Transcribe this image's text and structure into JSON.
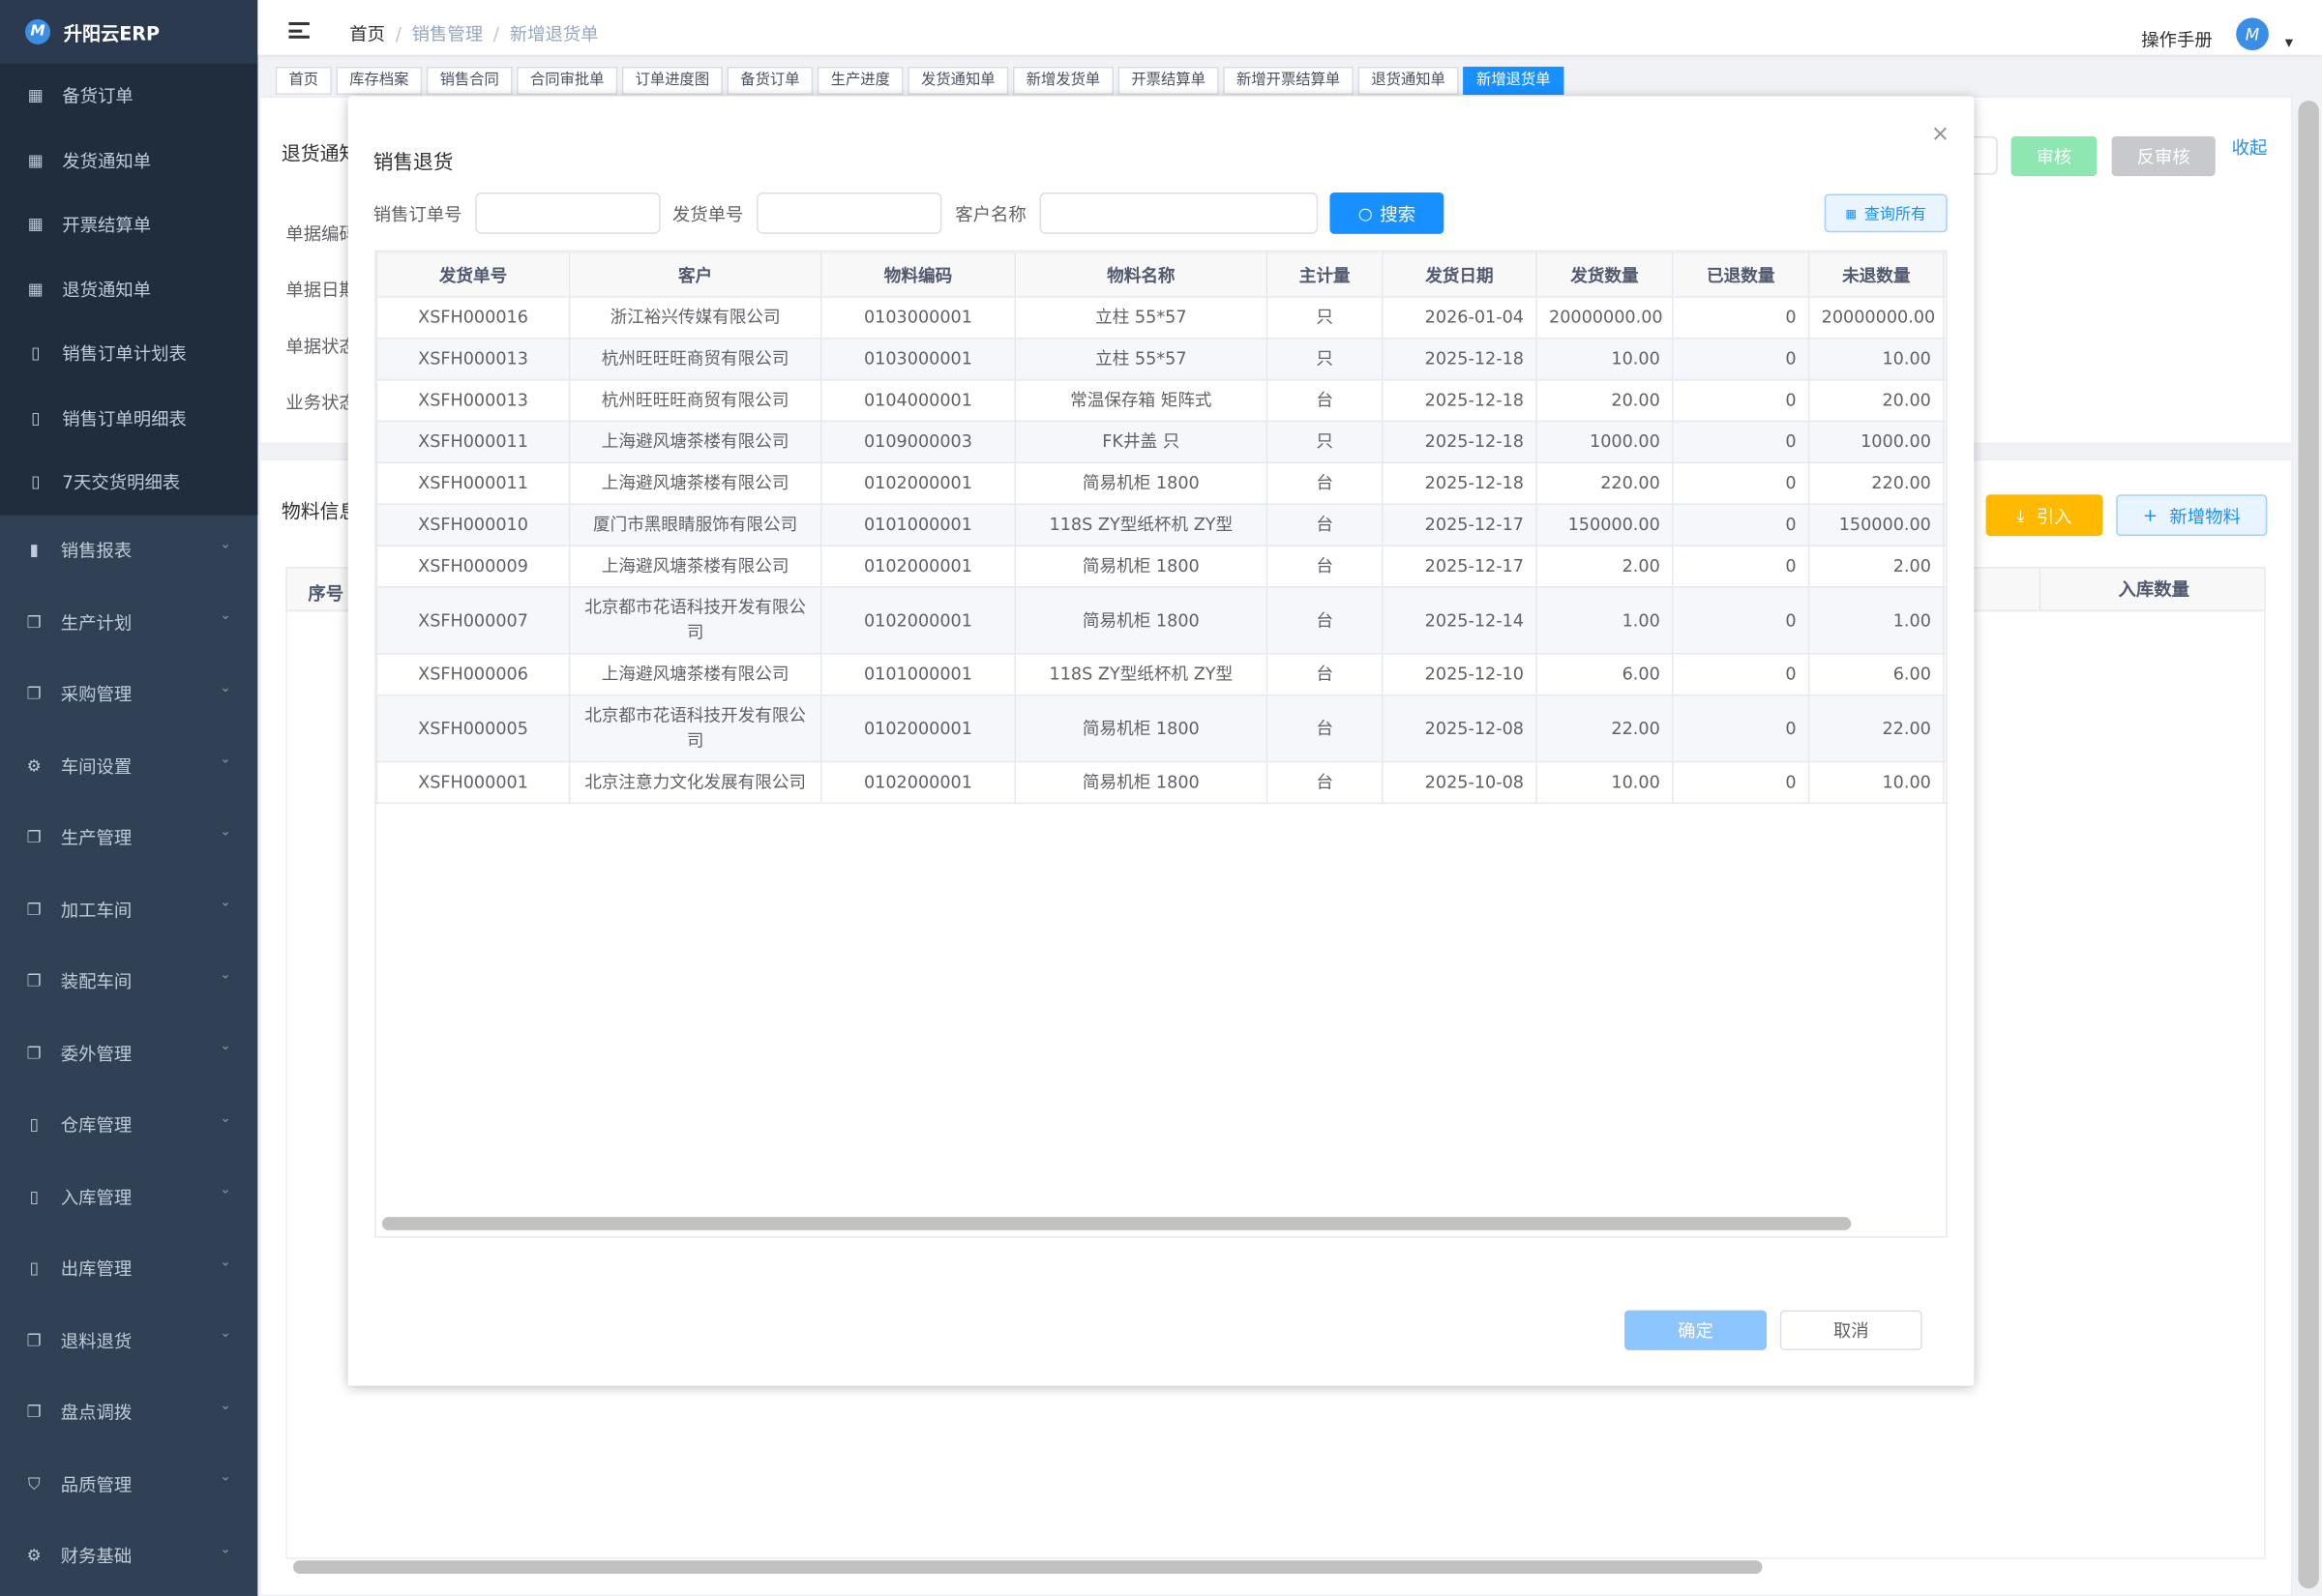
{
  "app": {
    "title": "升阳云ERP",
    "brand_color": "#1890ff"
  },
  "sidebar": {
    "sub_items": [
      {
        "label": "备货订单",
        "icon": "table-icon"
      },
      {
        "label": "发货通知单",
        "icon": "table-icon"
      },
      {
        "label": "开票结算单",
        "icon": "table-icon"
      },
      {
        "label": "退货通知单",
        "icon": "table-icon"
      },
      {
        "label": "销售订单计划表",
        "icon": "book-icon"
      },
      {
        "label": "销售订单明细表",
        "icon": "book-icon"
      },
      {
        "label": "7天交货明细表",
        "icon": "book-icon"
      }
    ],
    "items": [
      {
        "label": "销售报表",
        "icon": "bar-chart-icon"
      },
      {
        "label": "生产计划",
        "icon": "copy-icon"
      },
      {
        "label": "采购管理",
        "icon": "copy-icon"
      },
      {
        "label": "车间设置",
        "icon": "gear-icon"
      },
      {
        "label": "生产管理",
        "icon": "copy-icon"
      },
      {
        "label": "加工车间",
        "icon": "copy-icon"
      },
      {
        "label": "装配车间",
        "icon": "copy-icon"
      },
      {
        "label": "委外管理",
        "icon": "copy-icon"
      },
      {
        "label": "仓库管理",
        "icon": "book-icon"
      },
      {
        "label": "入库管理",
        "icon": "book-icon"
      },
      {
        "label": "出库管理",
        "icon": "book-icon"
      },
      {
        "label": "退料退货",
        "icon": "copy-icon"
      },
      {
        "label": "盘点调拨",
        "icon": "copy-icon"
      },
      {
        "label": "品质管理",
        "icon": "shield-icon"
      },
      {
        "label": "财务基础",
        "icon": "gear-icon"
      }
    ]
  },
  "header": {
    "breadcrumb": [
      "首页",
      "销售管理",
      "新增退货单"
    ],
    "manual": "操作手册"
  },
  "tabs": [
    "首页",
    "库存档案",
    "销售合同",
    "合同审批单",
    "订单进度图",
    "备货订单",
    "生产进度",
    "发货通知单",
    "新增发货单",
    "开票结算单",
    "新增开票结算单",
    "退货通知单",
    "新增退货单"
  ],
  "background": {
    "card_title": "退货通知单",
    "fields": [
      "单据编码",
      "单据日期",
      "单据状态",
      "业务状态"
    ],
    "approve": "审核",
    "unapprove": "反审核",
    "collapse": "收起",
    "material_title": "物料信息",
    "import": "引入",
    "add_material": "新增物料",
    "col_index": "序号",
    "col_in_qty": "入库数量"
  },
  "modal": {
    "title": "销售退货",
    "search": {
      "order_label": "销售订单号",
      "order_value": "",
      "ship_label": "发货单号",
      "ship_value": "",
      "customer_label": "客户名称",
      "customer_value": "",
      "search_btn": "搜索",
      "query_all": "查询所有"
    },
    "columns": [
      "发货单号",
      "客户",
      "物料编码",
      "物料名称",
      "主计量",
      "发货日期",
      "发货数量",
      "已退数量",
      "未退数量"
    ],
    "rows": [
      [
        "XSFH000016",
        "浙江裕兴传媒有限公司",
        "0103000001",
        "立柱 55*57",
        "只",
        "2026-01-04",
        "20000000.00",
        "0",
        "20000000.00"
      ],
      [
        "XSFH000013",
        "杭州旺旺旺商贸有限公司",
        "0103000001",
        "立柱 55*57",
        "只",
        "2025-12-18",
        "10.00",
        "0",
        "10.00"
      ],
      [
        "XSFH000013",
        "杭州旺旺旺商贸有限公司",
        "0104000001",
        "常温保存箱 矩阵式",
        "台",
        "2025-12-18",
        "20.00",
        "0",
        "20.00"
      ],
      [
        "XSFH000011",
        "上海避风塘茶楼有限公司",
        "0109000003",
        "FK井盖 只",
        "只",
        "2025-12-18",
        "1000.00",
        "0",
        "1000.00"
      ],
      [
        "XSFH000011",
        "上海避风塘茶楼有限公司",
        "0102000001",
        "简易机柜 1800",
        "台",
        "2025-12-18",
        "220.00",
        "0",
        "220.00"
      ],
      [
        "XSFH000010",
        "厦门市黑眼睛服饰有限公司",
        "0101000001",
        "118S ZY型纸杯机 ZY型",
        "台",
        "2025-12-17",
        "150000.00",
        "0",
        "150000.00"
      ],
      [
        "XSFH000009",
        "上海避风塘茶楼有限公司",
        "0102000001",
        "简易机柜 1800",
        "台",
        "2025-12-17",
        "2.00",
        "0",
        "2.00"
      ],
      [
        "XSFH000007",
        "北京都市花语科技开发有限公司",
        "0102000001",
        "简易机柜 1800",
        "台",
        "2025-12-14",
        "1.00",
        "0",
        "1.00"
      ],
      [
        "XSFH000006",
        "上海避风塘茶楼有限公司",
        "0101000001",
        "118S ZY型纸杯机 ZY型",
        "台",
        "2025-12-10",
        "6.00",
        "0",
        "6.00"
      ],
      [
        "XSFH000005",
        "北京都市花语科技开发有限公司",
        "0102000001",
        "简易机柜 1800",
        "台",
        "2025-12-08",
        "22.00",
        "0",
        "22.00"
      ],
      [
        "XSFH000001",
        "北京注意力文化发展有限公司",
        "0102000001",
        "简易机柜 1800",
        "台",
        "2025-10-08",
        "10.00",
        "0",
        "10.00"
      ]
    ],
    "confirm": "确定",
    "cancel": "取消"
  }
}
